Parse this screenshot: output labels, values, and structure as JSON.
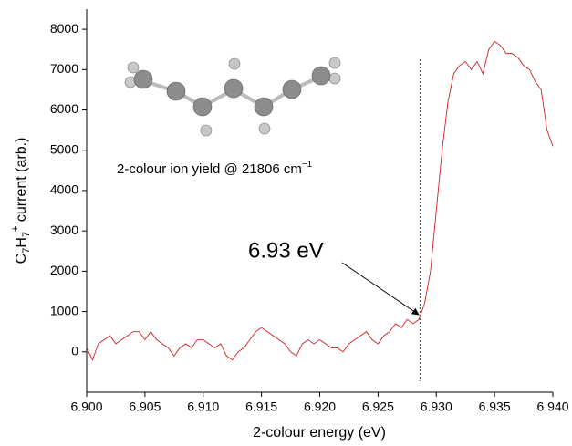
{
  "chart_data": {
    "type": "line",
    "x_label": "2-colour energy (eV)",
    "y_label": [
      "C",
      "7",
      "H",
      "7",
      "+",
      " current (arb.)"
    ],
    "caption": [
      "2-colour ion yield @ 21806 cm",
      "−1"
    ],
    "annotation": "6.93 eV",
    "marker_x": 6.9286,
    "color": "#cc2222",
    "x": [
      6.9,
      6.9005,
      6.901,
      6.9015,
      6.902,
      6.9025,
      6.903,
      6.9035,
      6.904,
      6.9045,
      6.905,
      6.9055,
      6.906,
      6.9065,
      6.907,
      6.9075,
      6.908,
      6.9085,
      6.909,
      6.9095,
      6.91,
      6.9105,
      6.911,
      6.9115,
      6.912,
      6.9125,
      6.913,
      6.9135,
      6.914,
      6.9145,
      6.915,
      6.9155,
      6.916,
      6.9165,
      6.917,
      6.9175,
      6.918,
      6.9185,
      6.919,
      6.9195,
      6.92,
      6.9205,
      6.921,
      6.9215,
      6.922,
      6.9225,
      6.923,
      6.9235,
      6.924,
      6.9245,
      6.925,
      6.9255,
      6.926,
      6.9265,
      6.927,
      6.9275,
      6.928,
      6.9285,
      6.929,
      6.9295,
      6.93,
      6.9305,
      6.931,
      6.9315,
      6.932,
      6.9325,
      6.933,
      6.9335,
      6.934,
      6.9345,
      6.935,
      6.9355,
      6.936,
      6.9365,
      6.937,
      6.9375,
      6.938,
      6.9385,
      6.939,
      6.9395,
      6.94
    ],
    "values": [
      100,
      -200,
      200,
      300,
      400,
      200,
      300,
      400,
      500,
      500,
      300,
      500,
      300,
      200,
      100,
      -100,
      100,
      200,
      100,
      300,
      300,
      200,
      100,
      200,
      -100,
      -200,
      0,
      100,
      300,
      500,
      600,
      500,
      400,
      300,
      200,
      0,
      -100,
      200,
      300,
      200,
      300,
      200,
      100,
      100,
      0,
      200,
      300,
      400,
      500,
      300,
      200,
      400,
      500,
      700,
      600,
      800,
      700,
      800,
      1200,
      2000,
      3500,
      5000,
      6200,
      6900,
      7100,
      7200,
      7000,
      7200,
      6900,
      7500,
      7700,
      7600,
      7400,
      7400,
      7300,
      7100,
      7000,
      6700,
      6500,
      5500,
      5100
    ],
    "xlim": [
      6.9,
      6.94
    ],
    "xticks": [
      {
        "value": 6.9,
        "label": "6.900"
      },
      {
        "value": 6.905,
        "label": "6.905"
      },
      {
        "value": 6.91,
        "label": "6.910"
      },
      {
        "value": 6.915,
        "label": "6.915"
      },
      {
        "value": 6.92,
        "label": "6.920"
      },
      {
        "value": 6.925,
        "label": "6.925"
      },
      {
        "value": 6.93,
        "label": "6.930"
      },
      {
        "value": 6.935,
        "label": "6.935"
      },
      {
        "value": 6.94,
        "label": "6.940"
      }
    ],
    "ylim": [
      -1000,
      8500
    ],
    "yticks": [
      0,
      1000,
      2000,
      3000,
      4000,
      5000,
      6000,
      7000,
      8000
    ]
  }
}
